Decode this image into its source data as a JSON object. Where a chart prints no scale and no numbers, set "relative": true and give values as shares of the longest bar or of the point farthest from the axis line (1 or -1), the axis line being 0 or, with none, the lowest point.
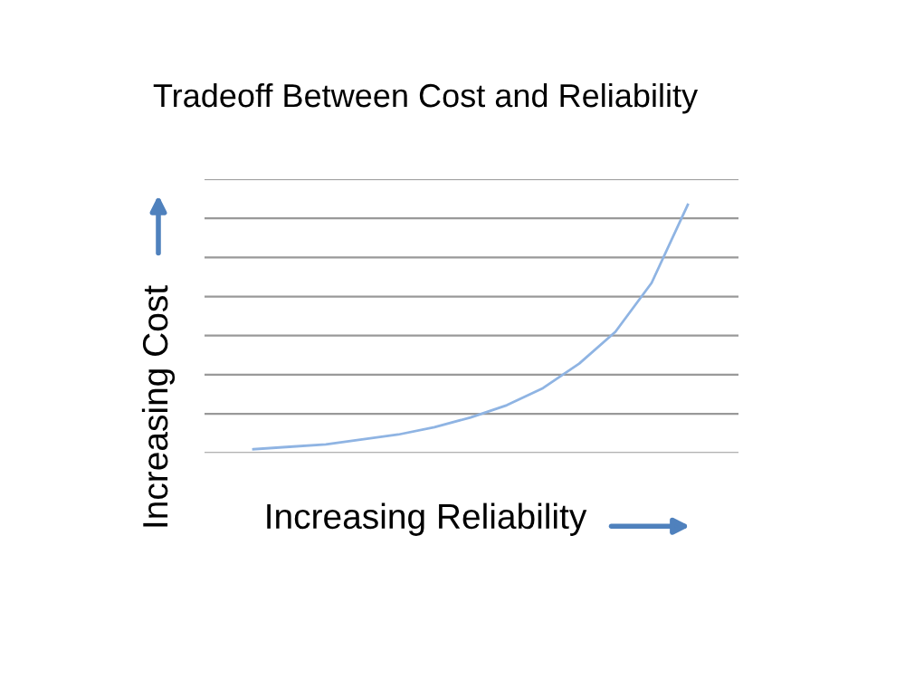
{
  "chart_data": {
    "type": "line",
    "title": "Tradeoff Between Cost and Reliability",
    "xlabel": "Increasing Reliability",
    "ylabel": "Increasing Cost",
    "relative": true,
    "grid": "y",
    "legend": false,
    "categories": [
      null,
      null,
      null,
      null,
      null,
      null,
      null,
      null,
      null,
      null,
      null,
      null,
      null
    ],
    "series": [
      {
        "color": "#8fb4e3",
        "values": [
          0,
          0.01,
          0.02,
          0.04,
          0.06,
          0.09,
          0.13,
          0.18,
          0.25,
          0.35,
          0.48,
          0.68,
          1
        ]
      }
    ]
  }
}
